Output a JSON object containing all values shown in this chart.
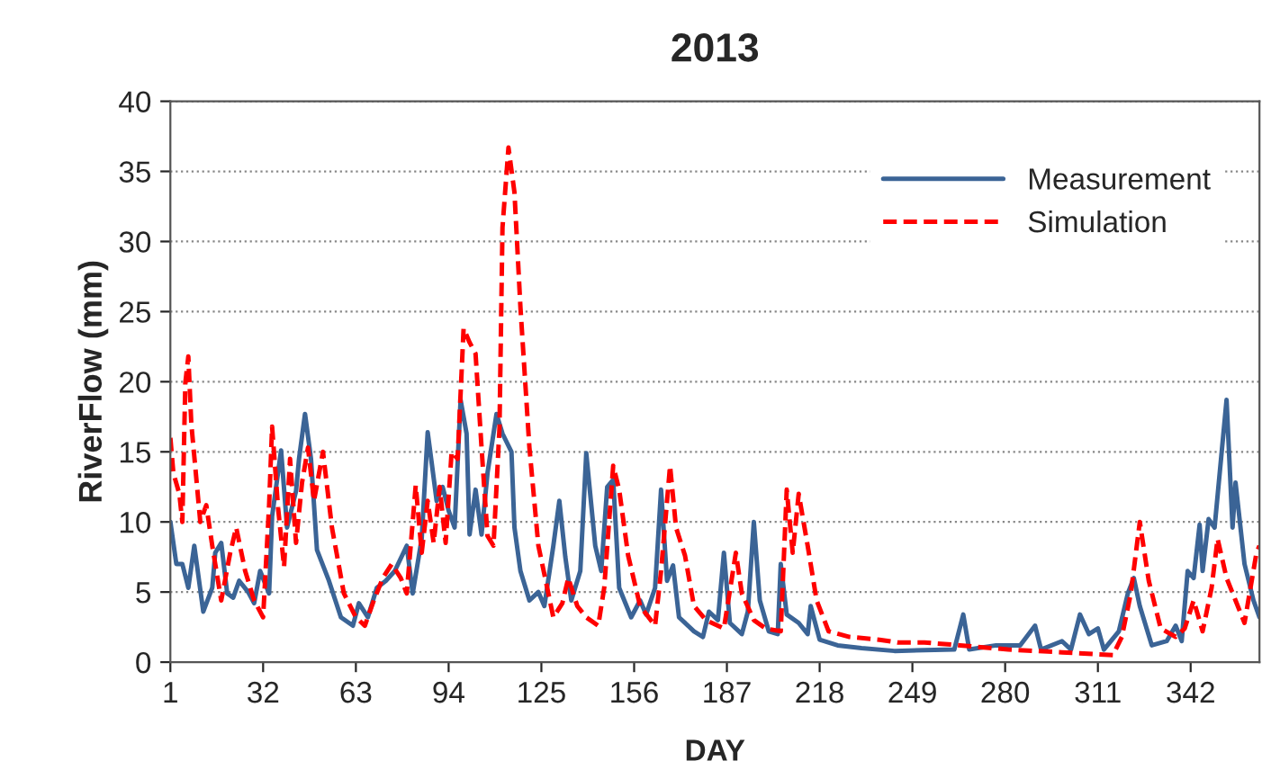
{
  "chart_data": {
    "type": "line",
    "title": "2013",
    "xlabel": "DAY",
    "ylabel": "RiverFlow (mm)",
    "xlim": [
      1,
      365
    ],
    "xticks": [
      1,
      32,
      63,
      94,
      125,
      156,
      187,
      218,
      249,
      280,
      311,
      342
    ],
    "ylim": [
      0,
      40
    ],
    "yticks": [
      0,
      5,
      10,
      15,
      20,
      25,
      30,
      35,
      40
    ],
    "grid": "y",
    "legend": "top right",
    "series": [
      {
        "name": "Measurement",
        "color": "#3b6496",
        "line_style": "solid",
        "x": [
          1,
          3,
          5,
          7,
          9,
          12,
          15,
          16,
          18,
          20,
          22,
          24,
          27,
          29,
          31,
          34,
          35,
          38,
          40,
          43,
          44,
          46,
          48,
          50,
          54,
          58,
          62,
          64,
          67,
          70,
          73,
          76,
          80,
          82,
          85,
          87,
          90,
          92,
          94,
          96,
          98,
          100,
          101,
          103,
          105,
          107,
          110,
          112,
          115,
          116,
          118,
          121,
          124,
          126,
          129,
          131,
          133,
          135,
          138,
          140,
          143,
          145,
          147,
          149,
          151,
          155,
          158,
          160,
          163,
          165,
          167,
          169,
          171,
          176,
          179,
          181,
          184,
          186,
          188,
          192,
          194,
          196,
          198,
          201,
          204,
          205,
          207,
          211,
          214,
          215,
          218,
          224,
          232,
          243,
          263,
          266,
          268,
          277,
          285,
          290,
          292,
          299,
          302,
          305,
          308,
          311,
          313,
          318,
          321,
          323,
          325,
          329,
          334,
          337,
          339,
          341,
          343,
          345,
          346,
          348,
          350,
          354,
          356,
          357,
          360,
          363,
          365
        ],
        "values": [
          10,
          7,
          7,
          5.3,
          8.3,
          3.6,
          5.3,
          7.8,
          8.5,
          4.9,
          4.6,
          5.8,
          5,
          4.2,
          6.5,
          4.9,
          10.4,
          15.1,
          9.6,
          12.2,
          14.5,
          17.7,
          14.5,
          8,
          5.8,
          3.2,
          2.6,
          4.2,
          3.2,
          5.3,
          5.8,
          6.5,
          8.3,
          4.9,
          8.8,
          16.4,
          11.5,
          12.5,
          10.8,
          9.6,
          18.7,
          16.3,
          9.1,
          12.3,
          9.1,
          13.5,
          17.7,
          16.3,
          15,
          9.6,
          6.5,
          4.4,
          5,
          4,
          8.3,
          11.5,
          7.5,
          4.4,
          6.5,
          14.9,
          8.3,
          6.5,
          12.5,
          13,
          5.3,
          3.2,
          4.4,
          3.4,
          5.3,
          12.3,
          5.8,
          6.9,
          3.2,
          2.2,
          1.8,
          3.6,
          3,
          7.8,
          2.8,
          2,
          3.6,
          10,
          4.4,
          2.2,
          2,
          7,
          3.4,
          2.8,
          2,
          4,
          1.6,
          1.2,
          1,
          0.8,
          0.9,
          3.4,
          0.9,
          1.2,
          1.2,
          2.6,
          0.9,
          1.5,
          0.9,
          3.4,
          2,
          2.4,
          0.9,
          2.2,
          4.9,
          6,
          4,
          1.2,
          1.5,
          2.6,
          1.5,
          6.5,
          6,
          9.8,
          6.5,
          10.2,
          9.6,
          18.7,
          9.6,
          12.8,
          7,
          4.4,
          3.2
        ]
      },
      {
        "name": "Simulation",
        "color": "#ff0000",
        "line_style": "dashed",
        "x": [
          1,
          2,
          4,
          5,
          6,
          7,
          8,
          11,
          13,
          15,
          18,
          21,
          23,
          26,
          29,
          32,
          34,
          35,
          37,
          39,
          41,
          43,
          45,
          47,
          49,
          52,
          55,
          59,
          63,
          66,
          69,
          72,
          75,
          78,
          80,
          83,
          85,
          87,
          89,
          91,
          93,
          95,
          97,
          99,
          101,
          103,
          105,
          107,
          109,
          111,
          112,
          114,
          116,
          118,
          121,
          124,
          129,
          132,
          134,
          137,
          140,
          144,
          146,
          149,
          151,
          154,
          158,
          163,
          165,
          168,
          170,
          173,
          176,
          180,
          186,
          190,
          192,
          196,
          200,
          205,
          207,
          209,
          211,
          214,
          217,
          221,
          228,
          238,
          244,
          253,
          265,
          281,
          299,
          316,
          319,
          322,
          325,
          328,
          332,
          337,
          340,
          343,
          346,
          349,
          351,
          354,
          357,
          360,
          362,
          364,
          365
        ],
        "values": [
          16,
          13.5,
          12,
          10,
          19.9,
          21.8,
          17,
          10,
          11.2,
          8.3,
          4.4,
          7.8,
          9.6,
          6.5,
          4.4,
          3.2,
          11.2,
          16.8,
          11,
          6.8,
          14.5,
          8.5,
          12.8,
          15.3,
          11.5,
          15,
          9.6,
          4.9,
          3.2,
          2.6,
          4.4,
          6,
          7,
          6,
          4.9,
          12.6,
          7.8,
          11.5,
          8.5,
          12.5,
          8.5,
          15,
          14.5,
          23.8,
          22.8,
          22,
          15.3,
          9,
          8.3,
          16.7,
          31,
          36.7,
          33.5,
          25.3,
          15.3,
          8.3,
          3.2,
          4.2,
          6,
          4,
          3.2,
          2.6,
          5.3,
          14,
          12.3,
          7.6,
          4,
          2.6,
          6.5,
          14,
          9.6,
          7.6,
          4,
          3,
          2.4,
          7.8,
          4.9,
          3,
          2.4,
          2.2,
          12.3,
          7.8,
          12,
          8.3,
          4.4,
          2.2,
          1.8,
          1.6,
          1.4,
          1.4,
          1.2,
          0.9,
          0.7,
          0.5,
          1.8,
          4.9,
          10,
          5.8,
          2.4,
          1.8,
          2.4,
          4.4,
          2.2,
          5.3,
          8.8,
          6,
          4.4,
          2.8,
          5.3,
          7.8,
          8.3
        ]
      }
    ]
  }
}
